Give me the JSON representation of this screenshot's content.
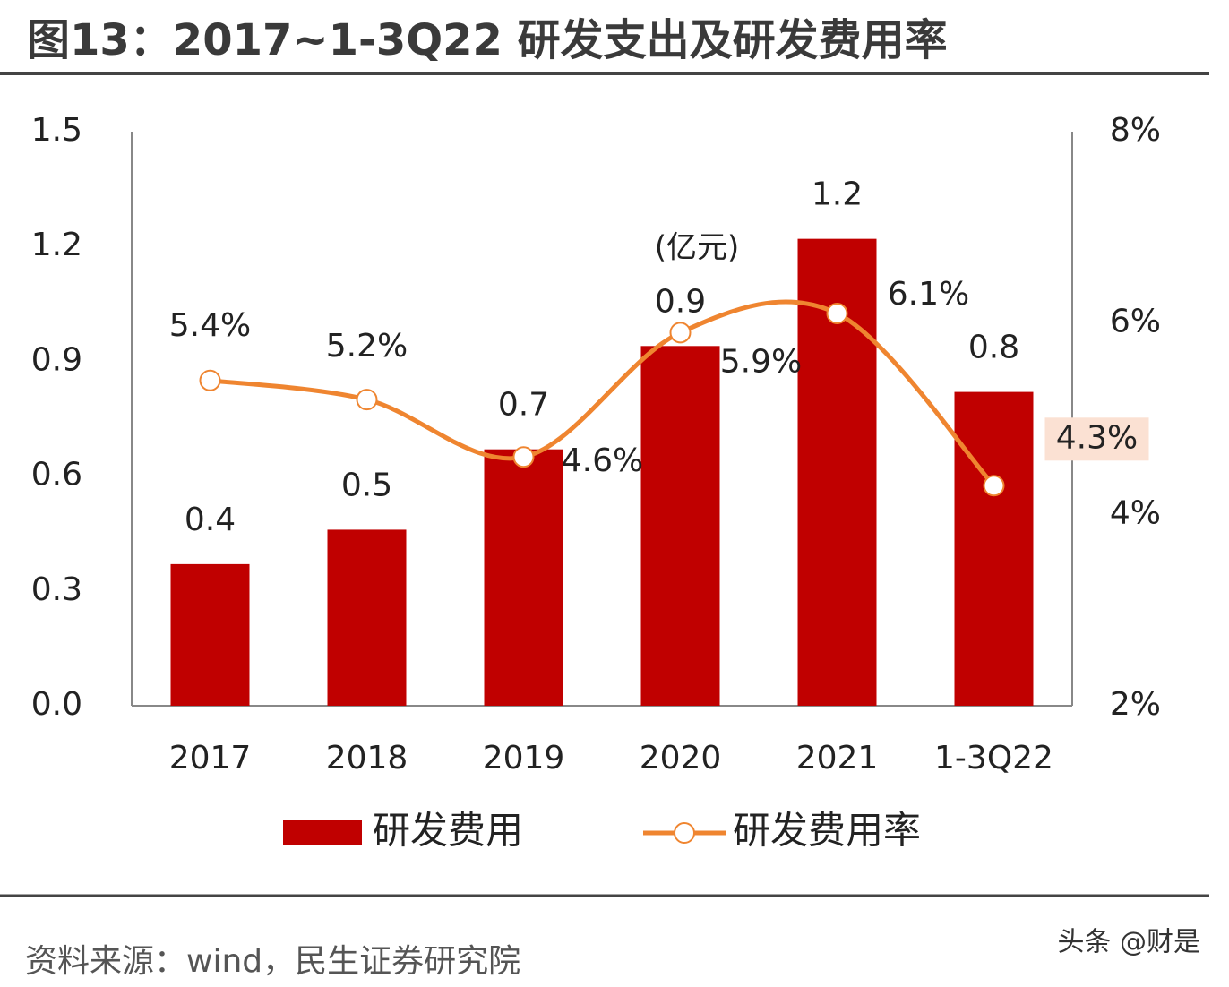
{
  "chart_data": {
    "type": "bar-line",
    "title": "图13：2017~1-3Q22 研发支出及研发费用率",
    "unit_label": "(亿元)",
    "source": "资料来源：wind，民生证券研究院",
    "watermark": "头条 @财是",
    "categories": [
      "2017",
      "2018",
      "2019",
      "2020",
      "2021",
      "1-3Q22"
    ],
    "series": [
      {
        "name": "研发费用",
        "color": "#c00000",
        "values": [
          0.37,
          0.46,
          0.67,
          0.94,
          1.22,
          0.82
        ],
        "value_labels": [
          "0.4",
          "0.5",
          "0.7",
          "0.9",
          "1.2",
          "0.8"
        ]
      },
      {
        "name": "研发费用率",
        "color": "#ef8530",
        "axis": "y2",
        "values": [
          5.4,
          5.2,
          4.6,
          5.9,
          6.1,
          4.3
        ],
        "value_labels": [
          "5.4%",
          "5.2%",
          "4.6%",
          "5.9%",
          "6.1%",
          "4.3%"
        ]
      }
    ],
    "ylim": [
      0,
      1.5
    ],
    "yticks": [
      {
        "value": 0,
        "label": "0.0"
      },
      0.3,
      0.6,
      0.9,
      1.2,
      1.5
    ],
    "y2lim": [
      2,
      8
    ],
    "y2ticks": [
      {
        "value": 2,
        "label": "2%"
      },
      {
        "value": 4,
        "label": "4%"
      },
      {
        "value": 6,
        "label": "6%"
      },
      {
        "value": 8,
        "label": "8%"
      }
    ],
    "legend": "bottom"
  }
}
